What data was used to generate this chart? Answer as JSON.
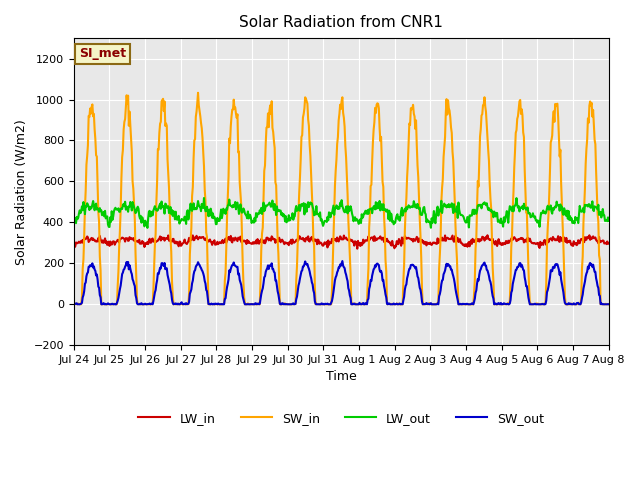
{
  "title": "Solar Radiation from CNR1",
  "xlabel": "Time",
  "ylabel": "Solar Radiation (W/m2)",
  "ylim": [
    -200,
    1300
  ],
  "yticks": [
    -200,
    0,
    200,
    400,
    600,
    800,
    1000,
    1200
  ],
  "background_color": "#ffffff",
  "plot_bg_color": "#e8e8e8",
  "grid_color": "#ffffff",
  "annotation_text": "SI_met",
  "annotation_bg": "#f5f5c8",
  "annotation_border": "#8b6914",
  "annotation_text_color": "#8b0000",
  "x_labels": [
    "Jul 24",
    "Jul 25",
    "Jul 26",
    "Jul 27",
    "Jul 28",
    "Jul 29",
    "Jul 30",
    "Jul 31",
    "Aug 1",
    "Aug 2",
    "Aug 3",
    "Aug 4",
    "Aug 5",
    "Aug 6",
    "Aug 7",
    "Aug 8"
  ],
  "n_days": 15,
  "colors": {
    "LW_in": "#cc0000",
    "SW_in": "#ffa500",
    "LW_out": "#00cc00",
    "SW_out": "#0000cc"
  },
  "line_width": 1.5,
  "legend_entries": [
    "LW_in",
    "SW_in",
    "LW_out",
    "SW_out"
  ]
}
